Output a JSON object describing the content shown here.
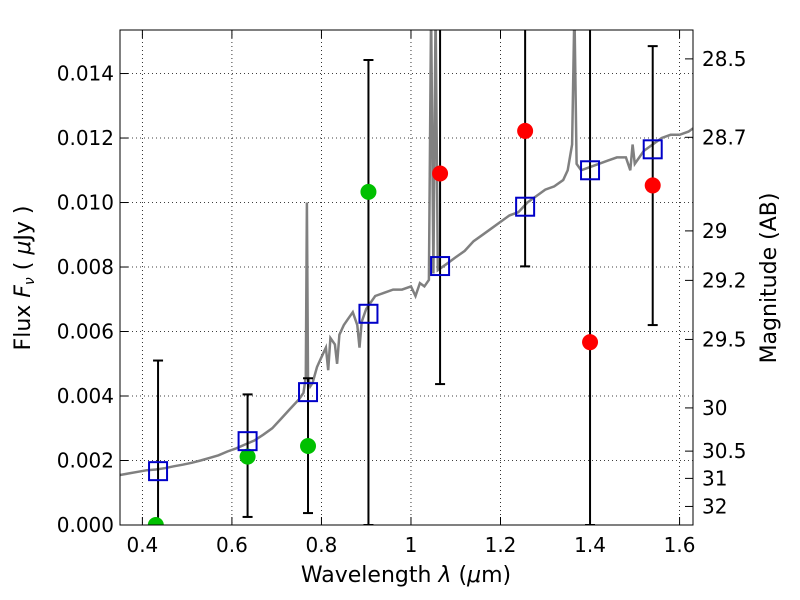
{
  "chart_data": {
    "type": "scatter",
    "xlabel_prefix": "Wavelength",
    "xlabel_symbol": "λ",
    "xlabel_unit_pre": "(",
    "xlabel_unit_mu": "μ",
    "xlabel_unit_post": "m)",
    "ylabel_prefix": "Flux",
    "ylabel_symbol": "F",
    "ylabel_sub": "ν",
    "ylabel_unit_open": "(",
    "ylabel_unit_mu": "μ",
    "ylabel_unit_post": "Jy )",
    "y2label": "Magnitude (AB)",
    "xlim": [
      0.35,
      1.63
    ],
    "ylim": [
      0.0,
      0.01535
    ],
    "grid": true,
    "x_ticks": [
      0.4,
      0.6,
      0.8,
      1.0,
      1.2,
      1.4,
      1.6
    ],
    "x_tick_labels": [
      "0.4",
      "0.6",
      "0.8",
      "1",
      "1.2",
      "1.4",
      "1.6"
    ],
    "y_ticks": [
      0.0,
      0.002,
      0.004,
      0.006,
      0.008,
      0.01,
      0.012,
      0.014
    ],
    "y_tick_labels": [
      "0.000",
      "0.002",
      "0.004",
      "0.006",
      "0.008",
      "0.010",
      "0.012",
      "0.014"
    ],
    "y2_ticks": [
      28.5,
      28.7,
      29,
      29.2,
      29.5,
      30,
      30.5,
      31,
      32
    ],
    "y2_tick_labels": [
      "28.5",
      "28.7",
      "29",
      "29.2",
      "29.5",
      "30",
      "30.5",
      "31",
      "32"
    ],
    "colors": {
      "model": "#808080",
      "green": "#00c000",
      "red": "#ff0000",
      "square": "#0000c8",
      "error": "#000000"
    },
    "model_spectrum": [
      [
        0.35,
        0.00155
      ],
      [
        0.37,
        0.0016
      ],
      [
        0.39,
        0.00165
      ],
      [
        0.41,
        0.0017
      ],
      [
        0.43,
        0.00172
      ],
      [
        0.45,
        0.00176
      ],
      [
        0.47,
        0.00182
      ],
      [
        0.49,
        0.00187
      ],
      [
        0.51,
        0.00193
      ],
      [
        0.53,
        0.002
      ],
      [
        0.55,
        0.00208
      ],
      [
        0.57,
        0.00216
      ],
      [
        0.59,
        0.00228
      ],
      [
        0.61,
        0.00238
      ],
      [
        0.63,
        0.0025
      ],
      [
        0.65,
        0.00262
      ],
      [
        0.67,
        0.0028
      ],
      [
        0.69,
        0.003
      ],
      [
        0.71,
        0.0033
      ],
      [
        0.73,
        0.0036
      ],
      [
        0.75,
        0.0039
      ],
      [
        0.76,
        0.0041
      ],
      [
        0.765,
        0.0046
      ],
      [
        0.7675,
        0.01
      ],
      [
        0.77,
        0.0046
      ],
      [
        0.775,
        0.0043
      ],
      [
        0.78,
        0.0044
      ],
      [
        0.79,
        0.0049
      ],
      [
        0.8,
        0.0052
      ],
      [
        0.81,
        0.0055
      ],
      [
        0.815,
        0.0048
      ],
      [
        0.82,
        0.0058
      ],
      [
        0.83,
        0.0056
      ],
      [
        0.835,
        0.005
      ],
      [
        0.84,
        0.0059
      ],
      [
        0.85,
        0.0062
      ],
      [
        0.86,
        0.0064
      ],
      [
        0.87,
        0.0066
      ],
      [
        0.88,
        0.0062
      ],
      [
        0.885,
        0.0055
      ],
      [
        0.89,
        0.0063
      ],
      [
        0.9,
        0.0067
      ],
      [
        0.91,
        0.0069
      ],
      [
        0.92,
        0.0071
      ],
      [
        0.94,
        0.0072
      ],
      [
        0.96,
        0.0073
      ],
      [
        0.98,
        0.0073
      ],
      [
        1.0,
        0.0074
      ],
      [
        1.01,
        0.0071
      ],
      [
        1.02,
        0.0075
      ],
      [
        1.03,
        0.0074
      ],
      [
        1.04,
        0.0076
      ],
      [
        1.045,
        0.016
      ],
      [
        1.05,
        0.0078
      ],
      [
        1.055,
        0.016
      ],
      [
        1.06,
        0.0079
      ],
      [
        1.08,
        0.0081
      ],
      [
        1.1,
        0.0083
      ],
      [
        1.12,
        0.0085
      ],
      [
        1.14,
        0.0088
      ],
      [
        1.16,
        0.009
      ],
      [
        1.18,
        0.0092
      ],
      [
        1.2,
        0.0094
      ],
      [
        1.22,
        0.0096
      ],
      [
        1.24,
        0.0097
      ],
      [
        1.26,
        0.01
      ],
      [
        1.28,
        0.0102
      ],
      [
        1.3,
        0.0104
      ],
      [
        1.32,
        0.0105
      ],
      [
        1.34,
        0.0107
      ],
      [
        1.35,
        0.011
      ],
      [
        1.36,
        0.0118
      ],
      [
        1.365,
        0.016
      ],
      [
        1.37,
        0.0112
      ],
      [
        1.38,
        0.011
      ],
      [
        1.4,
        0.0111
      ],
      [
        1.42,
        0.0112
      ],
      [
        1.44,
        0.0113
      ],
      [
        1.46,
        0.0114
      ],
      [
        1.48,
        0.0114
      ],
      [
        1.49,
        0.011
      ],
      [
        1.495,
        0.0118
      ],
      [
        1.5,
        0.0112
      ],
      [
        1.52,
        0.0116
      ],
      [
        1.54,
        0.0118
      ],
      [
        1.56,
        0.012
      ],
      [
        1.58,
        0.0121
      ],
      [
        1.6,
        0.0121
      ],
      [
        1.62,
        0.0122
      ],
      [
        1.63,
        0.0123
      ]
    ],
    "green_points": [
      {
        "x": 0.43,
        "y": 0.0
      },
      {
        "x": 0.635,
        "y": 0.00212
      },
      {
        "x": 0.77,
        "y": 0.00245
      },
      {
        "x": 0.905,
        "y": 0.01033
      }
    ],
    "red_points": [
      {
        "x": 1.065,
        "y": 0.0109
      },
      {
        "x": 1.255,
        "y": 0.01222
      },
      {
        "x": 1.4,
        "y": 0.00567
      },
      {
        "x": 1.54,
        "y": 0.01053
      }
    ],
    "square_points": [
      {
        "x": 0.435,
        "y": 0.00167
      },
      {
        "x": 0.635,
        "y": 0.0026
      },
      {
        "x": 0.77,
        "y": 0.00412
      },
      {
        "x": 0.905,
        "y": 0.00655
      },
      {
        "x": 1.065,
        "y": 0.00803
      },
      {
        "x": 1.255,
        "y": 0.00987
      },
      {
        "x": 1.4,
        "y": 0.011
      },
      {
        "x": 1.54,
        "y": 0.01165
      }
    ],
    "error_bars": [
      {
        "x": 0.435,
        "low": 0.0,
        "high": 0.0051
      },
      {
        "x": 0.635,
        "low": 0.00025,
        "high": 0.00405
      },
      {
        "x": 0.77,
        "low": 0.00037,
        "high": 0.00455
      },
      {
        "x": 0.905,
        "low": 0.0,
        "high": 0.01442
      },
      {
        "x": 1.065,
        "low": 0.00437,
        "high": 0.0154
      },
      {
        "x": 1.255,
        "low": 0.00802,
        "high": 0.0154
      },
      {
        "x": 1.4,
        "low": 0.0,
        "high": 0.0154
      },
      {
        "x": 1.54,
        "low": 0.0062,
        "high": 0.01485
      }
    ]
  }
}
